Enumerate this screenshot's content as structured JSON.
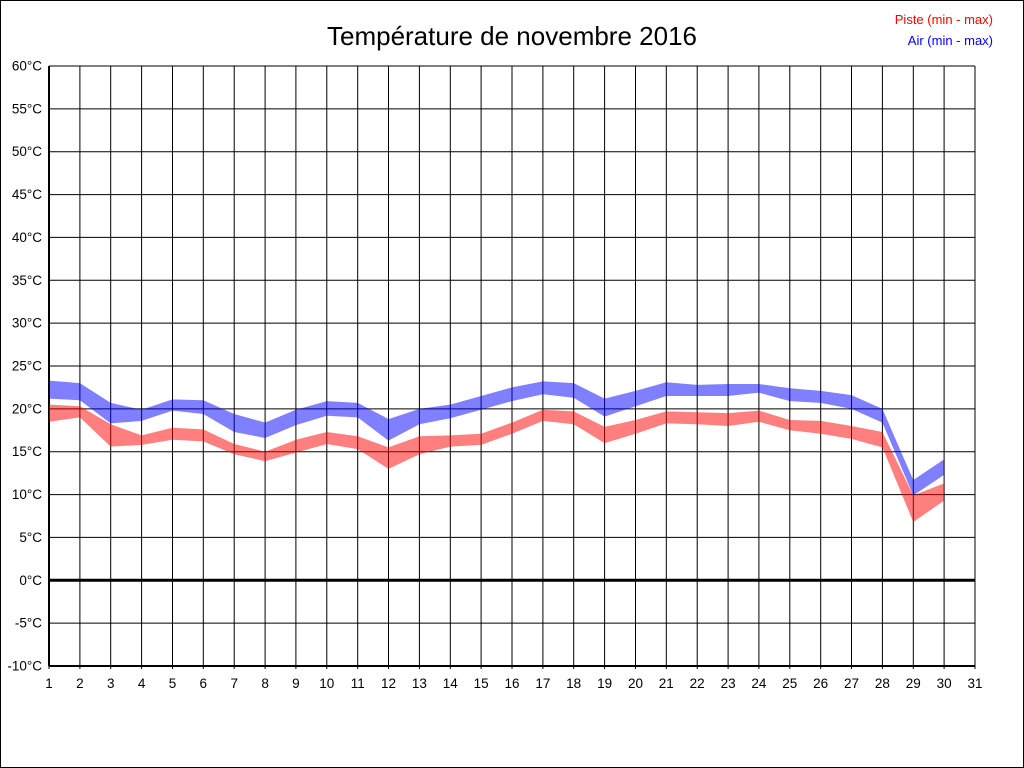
{
  "header": {
    "title": "Température de novembre 2016"
  },
  "legend": {
    "position": "top-right",
    "items": [
      {
        "label": "Piste (min - max)",
        "color": "#ff0000"
      },
      {
        "label": "Air (min - max)",
        "color": "#0000ff"
      }
    ]
  },
  "chart_data": {
    "type": "area",
    "subtype": "min-max-band",
    "title": "Température de novembre 2016",
    "xlabel": "",
    "ylabel": "",
    "xlim": [
      1,
      31
    ],
    "ylim": [
      -10,
      60
    ],
    "grid": true,
    "grid_color": "#000000",
    "zero_line": {
      "value": 0,
      "width": 3,
      "color": "#000000"
    },
    "x_tick_values": [
      1,
      2,
      3,
      4,
      5,
      6,
      7,
      8,
      9,
      10,
      11,
      12,
      13,
      14,
      15,
      16,
      17,
      18,
      19,
      20,
      21,
      22,
      23,
      24,
      25,
      26,
      27,
      28,
      29,
      30,
      31
    ],
    "x_tick_labels": [
      "1",
      "2",
      "3",
      "4",
      "5",
      "6",
      "7",
      "8",
      "9",
      "10",
      "11",
      "12",
      "13",
      "14",
      "15",
      "16",
      "17",
      "18",
      "19",
      "20",
      "21",
      "22",
      "23",
      "24",
      "25",
      "26",
      "27",
      "28",
      "29",
      "30",
      "31"
    ],
    "y_tick_values": [
      60,
      55,
      50,
      45,
      40,
      35,
      30,
      25,
      20,
      15,
      10,
      5,
      0,
      -5,
      -10
    ],
    "y_tick_labels": [
      "60°C",
      "55°C",
      "50°C",
      "45°C",
      "40°C",
      "35°C",
      "30°C",
      "25°C",
      "20°C",
      "15°C",
      "10°C",
      "5°C",
      "0°C",
      "-5°C",
      "-10°C"
    ],
    "days": [
      1,
      2,
      3,
      4,
      5,
      6,
      7,
      8,
      9,
      10,
      11,
      12,
      13,
      14,
      15,
      16,
      17,
      18,
      19,
      20,
      21,
      22,
      23,
      24,
      25,
      26,
      27,
      28,
      29,
      30
    ],
    "series": [
      {
        "name": "Air (min - max)",
        "legend_color": "#0000ff",
        "fill": "rgba(0,0,255,0.5)",
        "max": [
          23.3,
          23.0,
          20.7,
          19.9,
          21.1,
          21.0,
          19.4,
          18.4,
          19.9,
          20.9,
          20.7,
          18.8,
          20.0,
          20.5,
          21.5,
          22.5,
          23.2,
          23.0,
          21.2,
          22.1,
          23.1,
          22.8,
          22.9,
          22.9,
          22.4,
          22.1,
          21.6,
          20.0,
          11.7,
          14.1
        ],
        "min": [
          21.2,
          21.0,
          18.3,
          18.6,
          19.8,
          19.4,
          17.3,
          16.6,
          18.1,
          19.2,
          19.0,
          16.3,
          18.2,
          18.9,
          19.9,
          20.9,
          21.7,
          21.3,
          19.1,
          20.3,
          21.5,
          21.5,
          21.5,
          21.9,
          20.9,
          20.7,
          20.0,
          18.4,
          9.9,
          12.3
        ]
      },
      {
        "name": "Piste (min - max)",
        "legend_color": "#ff0000",
        "fill": "rgba(255,0,0,0.5)",
        "max": [
          20.5,
          20.3,
          18.2,
          16.9,
          17.8,
          17.6,
          15.9,
          15.0,
          16.4,
          17.3,
          16.8,
          15.5,
          16.8,
          16.9,
          17.1,
          18.4,
          19.9,
          19.7,
          17.9,
          18.7,
          19.7,
          19.6,
          19.5,
          19.8,
          18.7,
          18.6,
          18.0,
          17.3,
          9.9,
          11.3
        ],
        "min": [
          18.5,
          19.0,
          15.6,
          15.8,
          16.4,
          16.2,
          14.7,
          13.9,
          14.9,
          15.9,
          15.3,
          13.0,
          14.7,
          15.6,
          15.8,
          17.1,
          18.6,
          18.2,
          16.0,
          17.1,
          18.3,
          18.2,
          18.0,
          18.5,
          17.5,
          17.1,
          16.5,
          15.5,
          6.8,
          9.3
        ]
      }
    ]
  }
}
